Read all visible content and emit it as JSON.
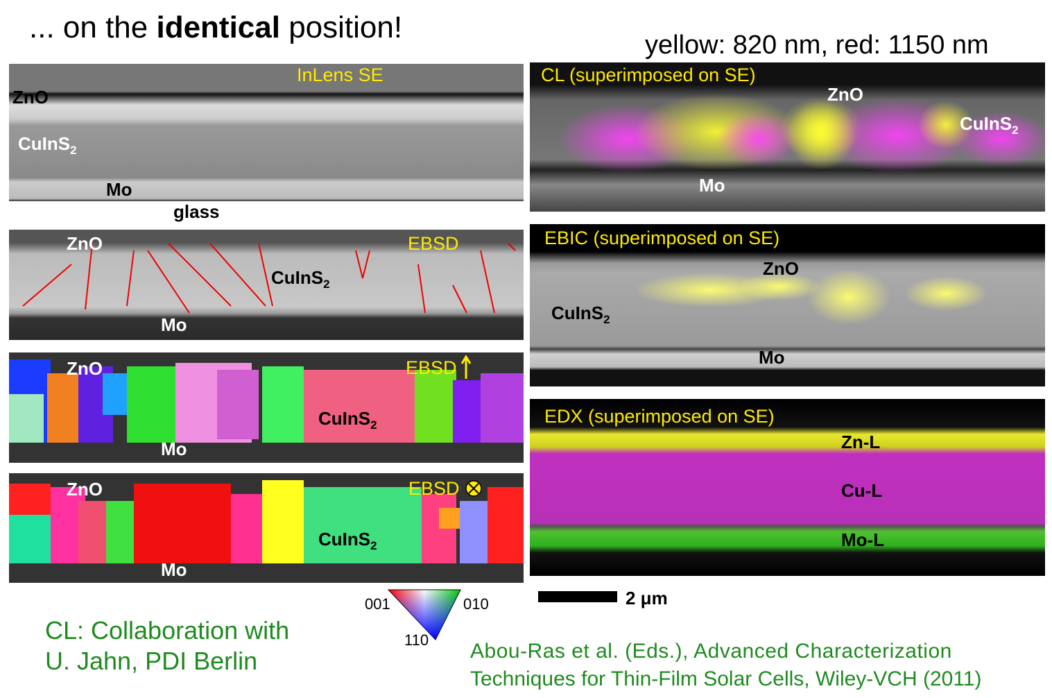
{
  "title": {
    "before": "... on the ",
    "bold": "identical",
    "after": " position!"
  },
  "subtitle": "yellow: 820 nm, red: 1150 nm",
  "left_panels": [
    {
      "label": "InLens SE",
      "zno": "ZnO",
      "cuins": {
        "base": "CuInS",
        "sub": "2"
      },
      "mo": "Mo",
      "glass": "glass"
    },
    {
      "label": "EBSD",
      "zno": "ZnO",
      "cuins": {
        "base": "CuInS",
        "sub": "2"
      },
      "mo": "Mo"
    },
    {
      "label": "EBSD",
      "zno": "ZnO",
      "cuins": {
        "base": "CuInS",
        "sub": "2"
      },
      "mo": "Mo"
    },
    {
      "label": "EBSD",
      "zno": "ZnO",
      "cuins": {
        "base": "CuInS",
        "sub": "2"
      },
      "mo": "Mo"
    }
  ],
  "right_panels": [
    {
      "label": "CL (superimposed on SE)",
      "zno": "ZnO",
      "cuins": {
        "base": "CuInS",
        "sub": "2"
      },
      "mo": "Mo"
    },
    {
      "label": "EBIC (superimposed on SE)",
      "zno": "ZnO",
      "cuins": {
        "base": "CuInS",
        "sub": "2"
      },
      "mo": "Mo"
    },
    {
      "label": "EDX (superimposed on SE)",
      "zn": "Zn-L",
      "cu": "Cu-L",
      "mo": "Mo-L"
    }
  ],
  "color_key": {
    "top_left": "001",
    "top_right": "010",
    "bottom": "110"
  },
  "scale_bar": "2 μm",
  "credit": [
    "CL: Collaboration with",
    "U. Jahn, PDI Berlin"
  ],
  "citation": [
    "Abou-Ras et al. (Eds.), Advanced Characterization",
    "Techniques for Thin-Film Solar Cells, Wiley-VCH (2011)"
  ]
}
